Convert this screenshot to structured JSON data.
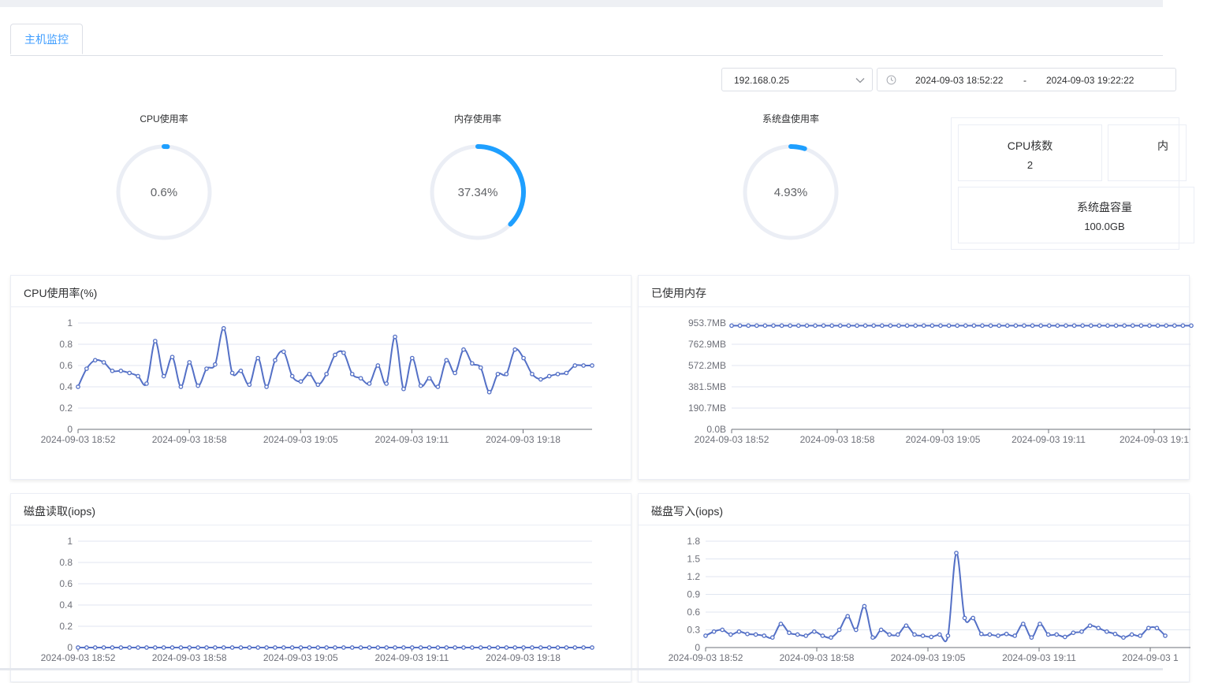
{
  "tabs": [
    {
      "label": "主机监控",
      "active": true
    }
  ],
  "filters": {
    "host": "192.168.0.25",
    "start_time": "2024-09-03 18:52:22",
    "separator": "-",
    "end_time": "2024-09-03 19:22:22"
  },
  "gauges": [
    {
      "title": "CPU使用率",
      "value_text": "0.6%",
      "percent": 0.6
    },
    {
      "title": "内存使用率",
      "value_text": "37.34%",
      "percent": 37.34
    },
    {
      "title": "系统盘使用率",
      "value_text": "4.93%",
      "percent": 4.93
    }
  ],
  "info": {
    "cpu_cores_label": "CPU核数",
    "cpu_cores_value": "2",
    "partial_label": "内",
    "disk_capacity_label": "系统盘容量",
    "disk_capacity_value": "100.0GB"
  },
  "colors": {
    "accent": "#409eff",
    "gauge_track": "#ebeef5",
    "line": "#5470c6",
    "gauge_arc": "#1e9fff"
  },
  "chart_data": [
    {
      "title": "CPU使用率(%)",
      "type": "line",
      "ytick_labels": [
        "0",
        "0.2",
        "0.4",
        "0.6",
        "0.8",
        "1"
      ],
      "ylim": [
        0,
        1
      ],
      "xtick_labels": [
        "2024-09-03 18:52",
        "2024-09-03 18:58",
        "2024-09-03 19:05",
        "2024-09-03 19:11",
        "2024-09-03 19:18"
      ],
      "series": [
        {
          "values": [
            0.4,
            0.57,
            0.65,
            0.63,
            0.55,
            0.55,
            0.53,
            0.5,
            0.43,
            0.83,
            0.5,
            0.68,
            0.4,
            0.63,
            0.41,
            0.57,
            0.61,
            0.95,
            0.53,
            0.55,
            0.42,
            0.67,
            0.4,
            0.65,
            0.73,
            0.5,
            0.45,
            0.52,
            0.42,
            0.52,
            0.7,
            0.72,
            0.52,
            0.48,
            0.43,
            0.6,
            0.43,
            0.87,
            0.38,
            0.67,
            0.41,
            0.48,
            0.4,
            0.65,
            0.53,
            0.75,
            0.62,
            0.58,
            0.35,
            0.52,
            0.52,
            0.75,
            0.67,
            0.52,
            0.47,
            0.5,
            0.52,
            0.53,
            0.6,
            0.6,
            0.6
          ]
        }
      ],
      "smooth": true,
      "grid": true
    },
    {
      "title": "已使用内存",
      "type": "line",
      "ytick_labels": [
        "0.0B",
        "190.7MB",
        "381.5MB",
        "572.2MB",
        "762.9MB",
        "953.7MB"
      ],
      "ylim": [
        0,
        953.7
      ],
      "y_unit": "MB",
      "xtick_labels": [
        "2024-09-03 18:52",
        "2024-09-03 18:58",
        "2024-09-03 19:05",
        "2024-09-03 19:11",
        "2024-09-03 19:1"
      ],
      "series": [
        {
          "values": [
            930,
            930,
            930,
            930,
            930,
            930,
            930,
            930,
            930,
            930,
            930,
            930,
            930,
            930,
            930,
            930,
            930,
            930,
            930,
            930,
            930,
            930,
            930,
            930,
            930,
            930,
            930,
            930,
            930,
            930,
            930,
            930,
            930,
            930,
            930,
            930,
            930,
            930,
            930,
            930,
            930,
            930,
            930,
            930,
            930,
            930,
            930,
            930,
            930,
            930,
            930,
            930,
            930,
            930,
            930,
            930
          ]
        }
      ],
      "grid": true
    },
    {
      "title": "磁盘读取(iops)",
      "type": "line",
      "ytick_labels": [
        "0",
        "0.2",
        "0.4",
        "0.6",
        "0.8",
        "1"
      ],
      "ylim": [
        0,
        1
      ],
      "xtick_labels": [
        "2024-09-03 18:52",
        "2024-09-03 18:58",
        "2024-09-03 19:05",
        "2024-09-03 19:11",
        "2024-09-03 19:18"
      ],
      "series": [
        {
          "values": [
            0,
            0,
            0,
            0,
            0,
            0,
            0,
            0,
            0,
            0,
            0,
            0,
            0,
            0,
            0,
            0,
            0,
            0,
            0,
            0,
            0,
            0,
            0,
            0,
            0,
            0,
            0,
            0,
            0,
            0,
            0,
            0,
            0,
            0,
            0,
            0,
            0,
            0,
            0,
            0,
            0,
            0,
            0,
            0,
            0,
            0,
            0,
            0,
            0,
            0,
            0,
            0,
            0,
            0,
            0,
            0,
            0,
            0,
            0,
            0,
            0
          ]
        }
      ],
      "grid": true
    },
    {
      "title": "磁盘写入(iops)",
      "type": "line",
      "ytick_labels": [
        "0",
        "0.3",
        "0.6",
        "0.9",
        "1.2",
        "1.5",
        "1.8"
      ],
      "ylim": [
        0,
        1.8
      ],
      "xtick_labels": [
        "2024-09-03 18:52",
        "2024-09-03 18:58",
        "2024-09-03 19:05",
        "2024-09-03 19:11",
        "2024-09-03 1"
      ],
      "series": [
        {
          "values": [
            0.2,
            0.27,
            0.3,
            0.22,
            0.27,
            0.23,
            0.22,
            0.2,
            0.17,
            0.4,
            0.25,
            0.22,
            0.2,
            0.27,
            0.2,
            0.17,
            0.3,
            0.53,
            0.3,
            0.7,
            0.17,
            0.3,
            0.22,
            0.22,
            0.37,
            0.22,
            0.2,
            0.18,
            0.22,
            0.2,
            1.6,
            0.5,
            0.5,
            0.23,
            0.22,
            0.2,
            0.23,
            0.2,
            0.4,
            0.17,
            0.4,
            0.22,
            0.22,
            0.18,
            0.25,
            0.27,
            0.37,
            0.33,
            0.27,
            0.23,
            0.17,
            0.22,
            0.2,
            0.33,
            0.33,
            0.2
          ]
        }
      ],
      "smooth": true,
      "grid": true
    }
  ]
}
